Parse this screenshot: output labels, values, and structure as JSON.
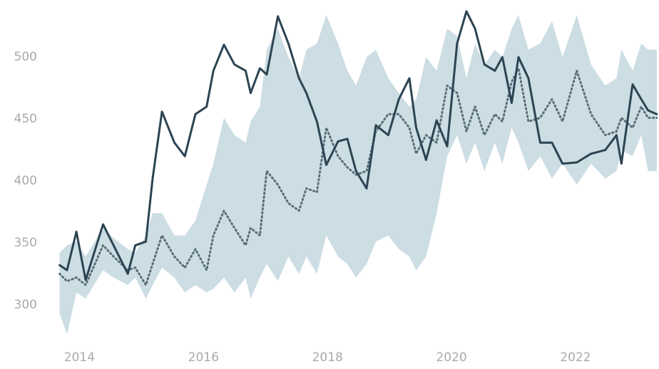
{
  "chart_data": {
    "type": "line",
    "x": [
      2013.68,
      2013.8,
      2013.95,
      2014.1,
      2014.38,
      2014.55,
      2014.78,
      2014.9,
      2015.07,
      2015.18,
      2015.33,
      2015.53,
      2015.7,
      2015.87,
      2016.05,
      2016.16,
      2016.33,
      2016.5,
      2016.68,
      2016.76,
      2016.91,
      2017.02,
      2017.2,
      2017.37,
      2017.54,
      2017.66,
      2017.83,
      2017.98,
      2018.17,
      2018.32,
      2018.46,
      2018.63,
      2018.78,
      2018.98,
      2019.15,
      2019.32,
      2019.43,
      2019.59,
      2019.76,
      2019.93,
      2020.09,
      2020.24,
      2020.38,
      2020.53,
      2020.7,
      2020.82,
      2020.97,
      2021.08,
      2021.24,
      2021.43,
      2021.62,
      2021.79,
      2022.02,
      2022.25,
      2022.48,
      2022.66,
      2022.74,
      2022.92,
      2023.06,
      2023.17,
      2023.31
    ],
    "band": {
      "color": "#ccdde3",
      "upper": [
        342,
        348,
        351,
        339,
        362,
        354,
        345,
        342,
        356,
        374,
        374,
        356,
        356,
        368,
        397,
        414,
        451,
        437,
        431,
        448,
        460,
        506,
        523,
        500,
        483,
        506,
        511,
        534,
        511,
        489,
        477,
        500,
        506,
        483,
        471,
        460,
        466,
        500,
        489,
        523,
        517,
        483,
        511,
        494,
        506,
        500,
        523,
        534,
        506,
        511,
        529,
        500,
        534,
        494,
        477,
        483,
        506,
        489,
        511,
        506,
        506
      ],
      "lower": [
        293,
        276,
        310,
        305,
        328,
        322,
        316,
        322,
        305,
        316,
        330,
        322,
        310,
        316,
        310,
        313,
        322,
        310,
        322,
        305,
        322,
        333,
        319,
        339,
        325,
        339,
        325,
        356,
        339,
        333,
        322,
        333,
        351,
        356,
        345,
        339,
        328,
        339,
        374,
        420,
        437,
        414,
        431,
        408,
        431,
        414,
        443,
        431,
        408,
        420,
        402,
        414,
        397,
        414,
        402,
        408,
        425,
        420,
        437,
        408,
        408
      ]
    },
    "series": [
      {
        "color": "#2c4452",
        "style": "solid",
        "values": [
          332,
          328,
          359,
          320,
          365,
          348,
          325,
          348,
          351,
          402,
          456,
          431,
          420,
          454,
          460,
          489,
          510,
          494,
          489,
          471,
          491,
          486,
          533,
          511,
          483,
          471,
          448,
          413,
          432,
          434,
          408,
          394,
          445,
          437,
          466,
          483,
          443,
          417,
          449,
          428,
          511,
          537,
          523,
          494,
          489,
          500,
          463,
          500,
          483,
          431,
          431,
          414,
          415,
          422,
          425,
          437,
          414,
          478,
          466,
          457,
          454
        ]
      },
      {
        "color": "#5a6e78",
        "style": "dotted",
        "values": [
          325,
          319,
          322,
          316,
          348,
          339,
          328,
          330,
          316,
          333,
          356,
          339,
          330,
          345,
          328,
          356,
          376,
          362,
          348,
          362,
          356,
          408,
          397,
          382,
          376,
          394,
          391,
          443,
          420,
          411,
          405,
          408,
          440,
          454,
          454,
          443,
          422,
          437,
          431,
          477,
          471,
          440,
          460,
          437,
          454,
          448,
          480,
          491,
          448,
          451,
          466,
          448,
          489,
          454,
          437,
          440,
          451,
          443,
          460,
          451,
          451
        ]
      }
    ],
    "xlim": [
      2013.65,
      2023.3
    ],
    "ylim": [
      270,
      545
    ],
    "xticks": [
      2014,
      2016,
      2018,
      2020,
      2022
    ],
    "yticks": [
      300,
      350,
      400,
      450,
      500
    ]
  }
}
